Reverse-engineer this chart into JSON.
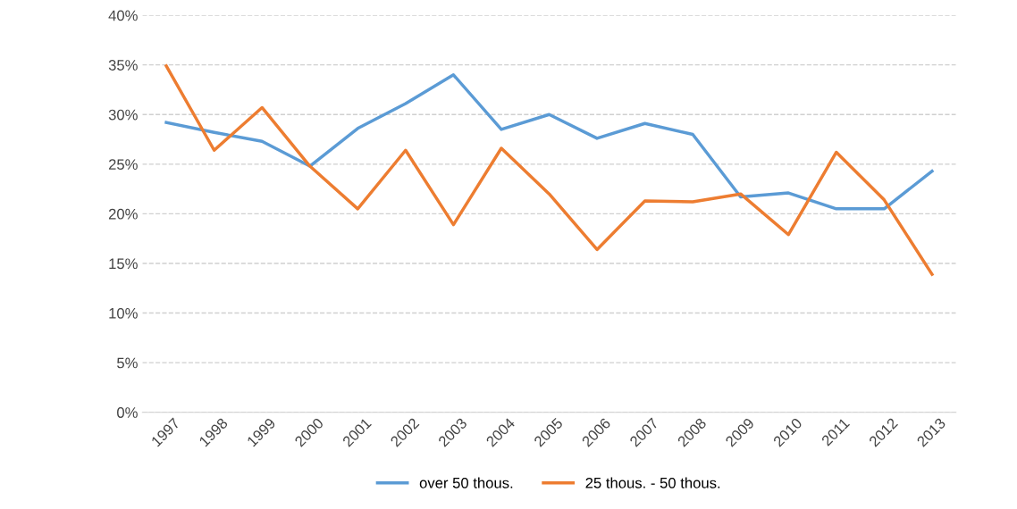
{
  "chart_data": {
    "type": "line",
    "categories": [
      "1997",
      "1998",
      "1999",
      "2000",
      "2001",
      "2002",
      "2003",
      "2004",
      "2005",
      "2006",
      "2007",
      "2008",
      "2009",
      "2010",
      "2011",
      "2012",
      "2013"
    ],
    "series": [
      {
        "name": "over 50 thous.",
        "color": "#5b9bd5",
        "values": [
          29.2,
          28.2,
          27.3,
          24.8,
          28.6,
          31.1,
          34.0,
          28.5,
          30.0,
          27.6,
          29.1,
          28.0,
          21.7,
          22.1,
          20.5,
          20.5,
          24.3
        ]
      },
      {
        "name": "25 thous. - 50 thous.",
        "color": "#ed7d31",
        "values": [
          34.9,
          26.4,
          30.7,
          24.8,
          20.5,
          26.4,
          18.9,
          26.6,
          22.0,
          16.4,
          21.3,
          21.2,
          22.0,
          17.9,
          26.2,
          21.4,
          13.9
        ]
      }
    ],
    "ylim": [
      0,
      40
    ],
    "yticks": [
      {
        "value": 0,
        "label": "0%"
      },
      {
        "value": 5,
        "label": "5%"
      },
      {
        "value": 10,
        "label": "10%"
      },
      {
        "value": 15,
        "label": "15%"
      },
      {
        "value": 20,
        "label": "20%"
      },
      {
        "value": 25,
        "label": "25%"
      },
      {
        "value": 30,
        "label": "30%"
      },
      {
        "value": 35,
        "label": "35%"
      },
      {
        "value": 40,
        "label": "40%"
      }
    ],
    "grid": "y",
    "legend": "bottom",
    "marker": "none",
    "line_style": "solid"
  }
}
